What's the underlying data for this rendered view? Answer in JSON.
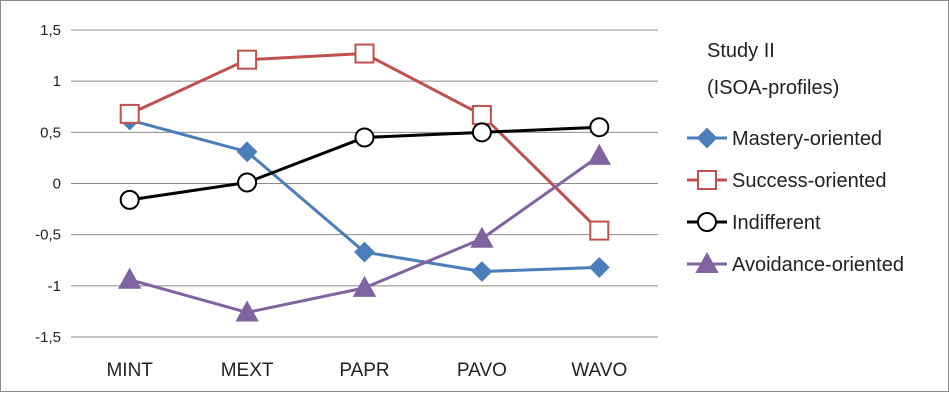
{
  "chart_data": {
    "type": "line",
    "title": "Study II\n(ISOA-profiles)",
    "title_lines": [
      "Study II",
      "(ISOA-profiles)"
    ],
    "xlabel": "",
    "ylabel": "",
    "categories": [
      "MINT",
      "MEXT",
      "PAPR",
      "PAVO",
      "WAVO"
    ],
    "ylim": [
      -1.5,
      1.5
    ],
    "yticks": [
      1.5,
      1,
      0.5,
      0,
      -0.5,
      -1,
      -1.5
    ],
    "ytick_labels": [
      "1,5",
      "1",
      "0,5",
      "0",
      "-0,5",
      "-1",
      "-1,5"
    ],
    "grid": true,
    "legend_position": "right",
    "series": [
      {
        "name": "Mastery-oriented",
        "values": [
          0.62,
          0.31,
          -0.67,
          -0.86,
          -0.82
        ],
        "color": "#4a7ebb",
        "marker": "diamond",
        "marker_fill": "#4a7ebb",
        "marker_stroke": "#4a7ebb"
      },
      {
        "name": "Success-oriented",
        "values": [
          0.68,
          1.21,
          1.27,
          0.67,
          -0.46
        ],
        "color": "#c0504d",
        "marker": "square",
        "marker_fill": "#ffffff",
        "marker_stroke": "#c0504d"
      },
      {
        "name": "Indifferent",
        "values": [
          -0.16,
          0.01,
          0.45,
          0.5,
          0.55
        ],
        "color": "#000000",
        "marker": "circle",
        "marker_fill": "#ffffff",
        "marker_stroke": "#000000"
      },
      {
        "name": "Avoidance-oriented",
        "values": [
          -0.94,
          -1.26,
          -1.02,
          -0.54,
          0.27
        ],
        "color": "#8064a2",
        "marker": "triangle",
        "marker_fill": "#8064a2",
        "marker_stroke": "#8064a2"
      }
    ]
  }
}
